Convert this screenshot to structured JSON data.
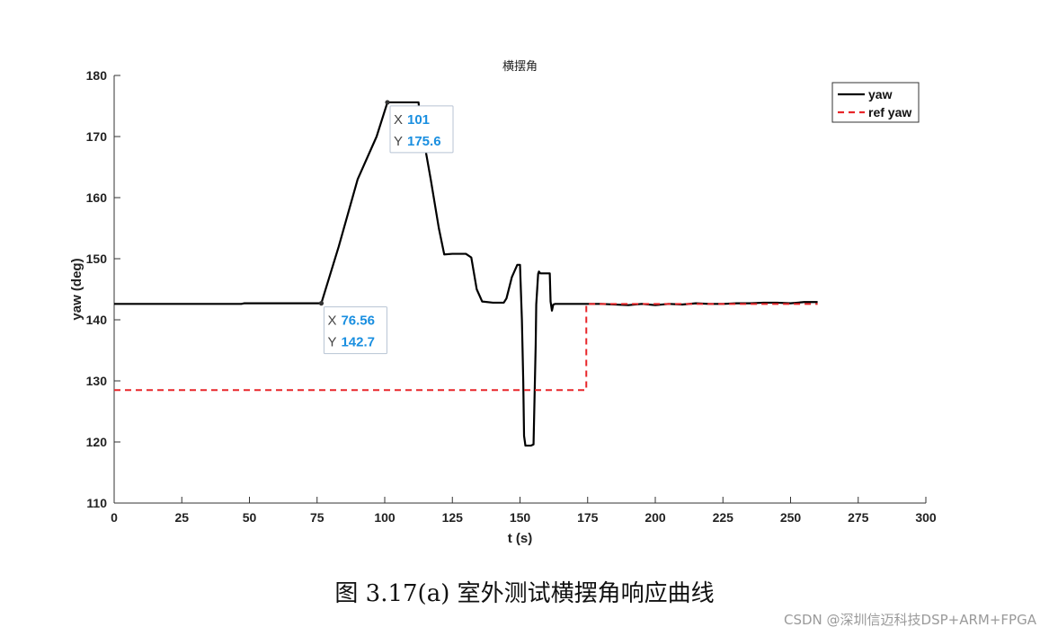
{
  "chart_data": {
    "type": "line",
    "title": "横摆角",
    "xlabel": "t (s)",
    "ylabel": "yaw (deg)",
    "xlim": [
      0,
      300
    ],
    "ylim": [
      110,
      180
    ],
    "xticks": [
      0,
      25,
      50,
      75,
      100,
      125,
      150,
      175,
      200,
      225,
      250,
      275,
      300
    ],
    "yticks": [
      110,
      120,
      130,
      140,
      150,
      160,
      170,
      180
    ],
    "grid": false,
    "legend_position": "top-right",
    "series": [
      {
        "name": "yaw",
        "color": "#000000",
        "dash": "solid",
        "x": [
          0,
          47,
          48,
          76.56,
          83,
          90,
          97,
          101,
          112.5,
          113,
          117,
          120,
          122,
          125,
          130,
          132,
          134,
          136,
          140,
          144,
          145,
          147,
          149,
          150,
          150.7,
          151.2,
          151.5,
          152,
          154,
          155,
          155.8,
          156,
          156.7,
          157,
          157.5,
          159,
          161,
          161.3,
          161.8,
          162.3,
          163,
          165,
          170,
          180,
          190,
          195,
          200,
          205,
          210,
          215,
          220,
          225,
          230,
          235,
          240,
          245,
          250,
          255,
          260
        ],
        "y": [
          142.6,
          142.6,
          142.7,
          142.7,
          152,
          163,
          170,
          175.6,
          175.6,
          173,
          163,
          155,
          150.7,
          150.8,
          150.8,
          150.2,
          145,
          143,
          142.8,
          142.8,
          143.5,
          147,
          149,
          149,
          140,
          130,
          121,
          119.4,
          119.4,
          119.6,
          136,
          142.5,
          147.5,
          147.9,
          147.6,
          147.6,
          147.6,
          143,
          141.5,
          142.5,
          142.6,
          142.6,
          142.6,
          142.6,
          142.4,
          142.6,
          142.4,
          142.6,
          142.5,
          142.7,
          142.6,
          142.6,
          142.7,
          142.7,
          142.8,
          142.8,
          142.7,
          142.9,
          142.9
        ]
      },
      {
        "name": "ref yaw",
        "color": "#e8262a",
        "dash": "dashed",
        "x": [
          0,
          174.5,
          174.5,
          260
        ],
        "y": [
          128.5,
          128.5,
          142.6,
          142.6
        ]
      }
    ],
    "datatips": [
      {
        "x": 101,
        "y": 175.6,
        "x_label": "X",
        "y_label": "Y",
        "x_text": "101",
        "y_text": "175.6"
      },
      {
        "x": 76.56,
        "y": 142.7,
        "x_label": "X",
        "y_label": "Y",
        "x_text": "76.56",
        "y_text": "142.7"
      }
    ]
  },
  "caption": "图 3.17(a)  室外测试横摆角响应曲线",
  "watermark": "CSDN @深圳信迈科技DSP+ARM+FPGA"
}
